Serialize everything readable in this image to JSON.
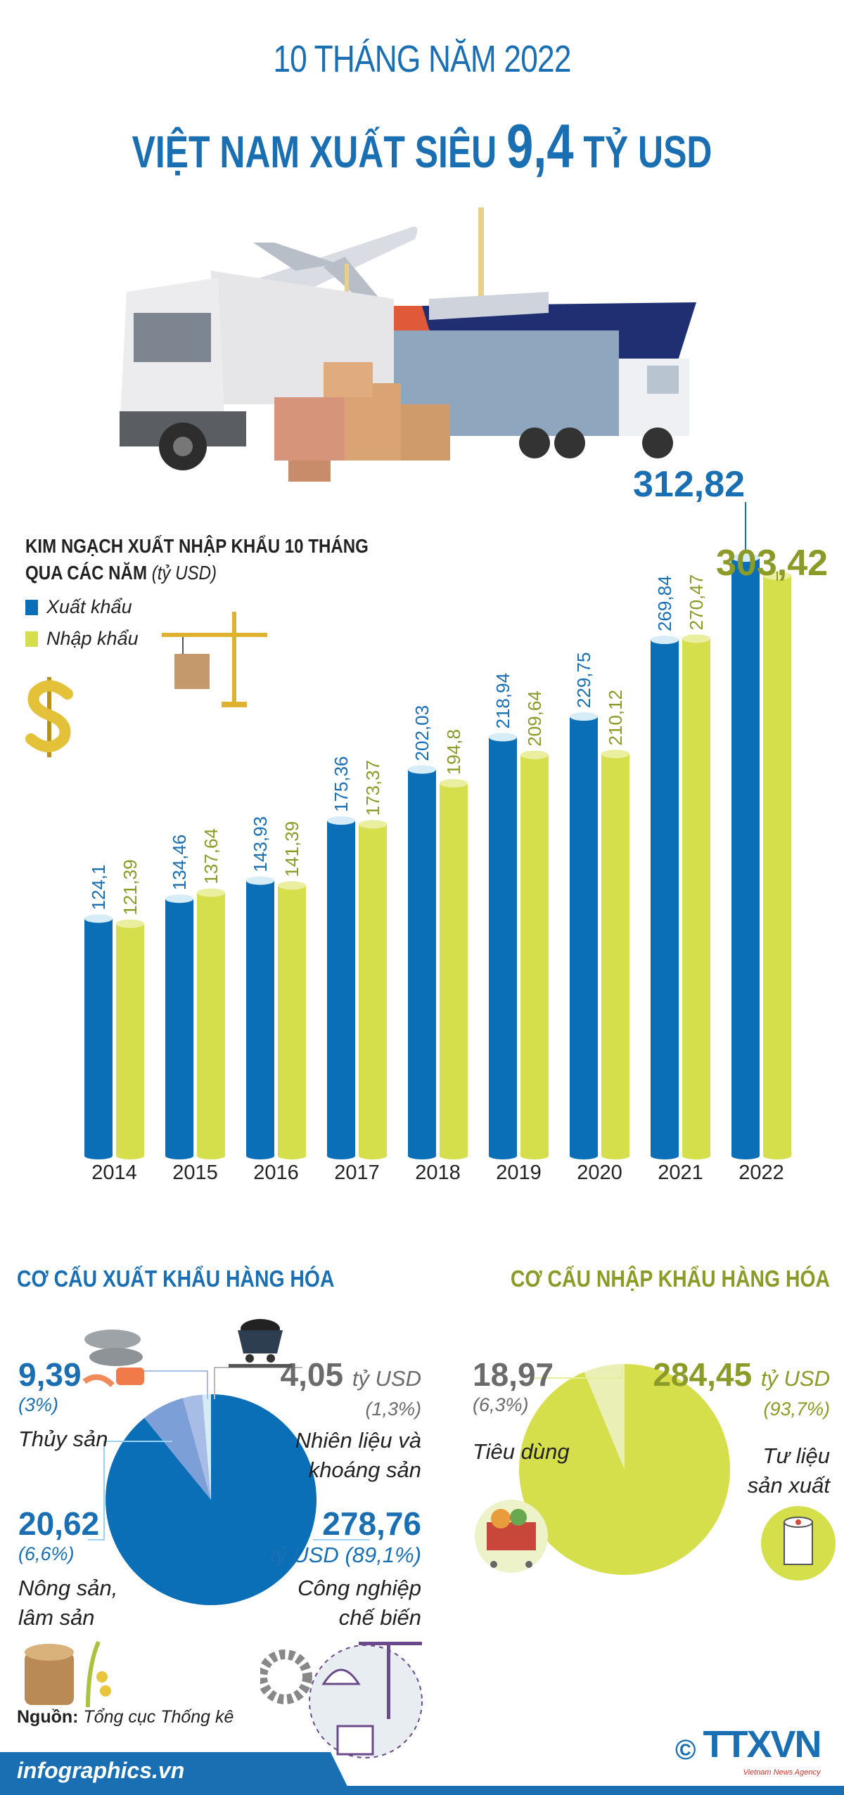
{
  "header": {
    "subtitle": "10 THÁNG NĂM 2022",
    "title_prefix": "VIỆT NAM XUẤT SIÊU",
    "title_value": "9,4",
    "title_suffix": "TỶ USD"
  },
  "chart_data": [
    {
      "type": "bar",
      "title": "KIM NGẠCH XUẤT NHẬP KHẨU 10 THÁNG QUA CÁC NĂM",
      "title_line1": "KIM NGẠCH XUẤT NHẬP KHẨU 10 THÁNG",
      "title_line2": "QUA CÁC NĂM",
      "unit": "(tỷ USD)",
      "categories": [
        "2014",
        "2015",
        "2016",
        "2017",
        "2018",
        "2019",
        "2020",
        "2021",
        "2022"
      ],
      "series": [
        {
          "name": "Xuất khẩu",
          "color": "#0b6fb8",
          "values": [
            124.1,
            134.46,
            143.93,
            175.36,
            202.03,
            218.94,
            229.75,
            269.84,
            312.82
          ],
          "labels": [
            "124,1",
            "134,46",
            "143,93",
            "175,36",
            "202,03",
            "218,94",
            "229,75",
            "269,84",
            "312,82"
          ]
        },
        {
          "name": "Nhập khẩu",
          "color": "#d5df4b",
          "values": [
            121.39,
            137.64,
            141.39,
            173.37,
            194.8,
            209.64,
            210.12,
            270.47,
            303.42
          ],
          "labels": [
            "121,39",
            "137,64",
            "141,39",
            "173,37",
            "194,8",
            "209,64",
            "210,12",
            "270,47",
            "303,42"
          ]
        }
      ],
      "ylim": [
        0,
        320
      ],
      "grid": false,
      "legend": "top-left"
    },
    {
      "type": "pie",
      "title": "CƠ CẤU XUẤT KHẨU HÀNG HÓA",
      "unit": "tỷ USD",
      "slices": [
        {
          "label_lines": [
            "Công nghiệp",
            "chế biến"
          ],
          "value": 278.76,
          "value_text": "278,76",
          "percent_text": "(89,1%)",
          "color": "#0b6fb8"
        },
        {
          "label_lines": [
            "Nông sản,",
            "lâm sản"
          ],
          "value": 20.62,
          "value_text": "20,62",
          "percent_text": "(6,6%)",
          "color": "#7d9fd8"
        },
        {
          "label_lines": [
            "Thủy sản"
          ],
          "value": 9.39,
          "value_text": "9,39",
          "percent_text": "(3%)",
          "color": "#a8bde6"
        },
        {
          "label_lines": [
            "Nhiên liệu và",
            "khoáng sản"
          ],
          "value": 4.05,
          "value_text": "4,05",
          "percent_text": "(1,3%)",
          "color": "#d7ebf7"
        }
      ]
    },
    {
      "type": "pie",
      "title": "CƠ CẤU NHẬP KHẨU HÀNG HÓA",
      "unit": "tỷ USD",
      "slices": [
        {
          "label_lines": [
            "Tư liệu",
            "sản xuất"
          ],
          "value": 284.45,
          "value_text": "284,45",
          "percent_text": "(93,7%)",
          "color": "#d5df4b"
        },
        {
          "label_lines": [
            "Tiêu dùng"
          ],
          "value": 18.97,
          "value_text": "18,97",
          "percent_text": "(6,3%)",
          "color": "#eaf0b5"
        }
      ]
    }
  ],
  "colors": {
    "export": "#0b6fb8",
    "import": "#d5df4b",
    "import_text": "#8c9a27",
    "title": "#1a6fb3",
    "grey_text": "#6b6b6b"
  },
  "footer": {
    "source_label": "Nguồn:",
    "source_value": "Tổng cục Thống kê",
    "site": "infographics.vn",
    "logo_text": "TTXVN",
    "logo_sub": "Vietnam News Agency",
    "copyright": "©"
  }
}
